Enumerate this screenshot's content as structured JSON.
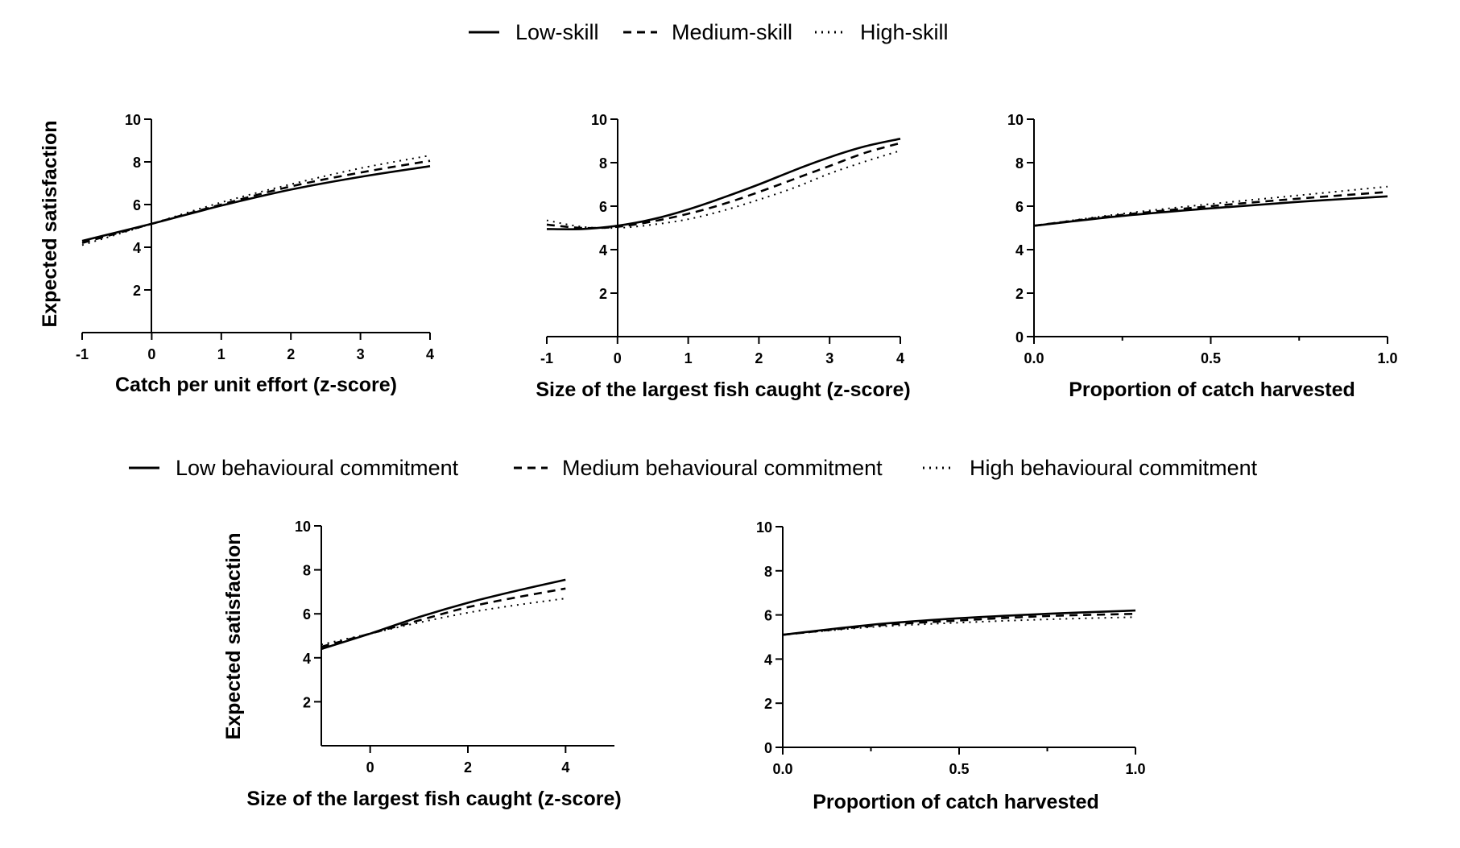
{
  "legends": [
    {
      "items": [
        {
          "label": "Low-skill",
          "style": "solid"
        },
        {
          "label": "Medium-skill",
          "style": "dashed"
        },
        {
          "label": "High-skill",
          "style": "dotted"
        }
      ]
    },
    {
      "items": [
        {
          "label": "Low behavioural commitment",
          "style": "solid"
        },
        {
          "label": "Medium behavioural commitment",
          "style": "dashed"
        },
        {
          "label": "High behavioural commitment",
          "style": "dotted"
        }
      ]
    }
  ],
  "chart_data": [
    {
      "type": "line",
      "group": "skill",
      "xlabel": "Catch per unit effort (z-score)",
      "ylabel": "Expected satisfaction",
      "xlim": [
        -1,
        4
      ],
      "ylim": [
        0,
        10
      ],
      "x_ticks": [
        -1,
        0,
        1,
        2,
        3,
        4
      ],
      "x_tick_labels": [
        "-1",
        "0",
        "1",
        "2",
        "3",
        "4"
      ],
      "y_ticks": [
        2,
        4,
        6,
        8,
        10
      ],
      "y_tick_labels": [
        "2",
        "4",
        "6",
        "8",
        "10"
      ],
      "x": [
        -1,
        0,
        1,
        2,
        3,
        4
      ],
      "series": [
        {
          "name": "Low-skill",
          "style": "solid",
          "values": [
            4.3,
            5.1,
            5.95,
            6.7,
            7.3,
            7.8
          ]
        },
        {
          "name": "Medium-skill",
          "style": "dashed",
          "values": [
            4.2,
            5.1,
            6.0,
            6.85,
            7.5,
            8.05
          ]
        },
        {
          "name": "High-skill",
          "style": "dotted",
          "values": [
            4.1,
            5.1,
            6.1,
            6.95,
            7.7,
            8.3
          ]
        }
      ]
    },
    {
      "type": "line",
      "group": "skill",
      "xlabel": "Size of the largest fish caught (z-score)",
      "ylabel": "",
      "xlim": [
        -1,
        4
      ],
      "ylim": [
        0,
        10
      ],
      "x_ticks": [
        -1,
        0,
        1,
        2,
        3,
        4
      ],
      "x_tick_labels": [
        "-1",
        "0",
        "1",
        "2",
        "3",
        "4"
      ],
      "y_ticks": [
        2,
        4,
        6,
        8,
        10
      ],
      "y_tick_labels": [
        "2",
        "4",
        "6",
        "8",
        "10"
      ],
      "x": [
        -1,
        -0.5,
        0,
        0.5,
        1,
        1.5,
        2,
        2.5,
        3,
        3.5,
        4
      ],
      "series": [
        {
          "name": "Low-skill",
          "style": "solid",
          "values": [
            4.95,
            4.95,
            5.1,
            5.4,
            5.85,
            6.4,
            7.0,
            7.65,
            8.25,
            8.75,
            9.1
          ]
        },
        {
          "name": "Medium-skill",
          "style": "dashed",
          "values": [
            5.15,
            5.0,
            5.05,
            5.3,
            5.65,
            6.1,
            6.65,
            7.25,
            7.85,
            8.45,
            8.9
          ]
        },
        {
          "name": "High-skill",
          "style": "dotted",
          "values": [
            5.35,
            5.05,
            5.0,
            5.15,
            5.4,
            5.8,
            6.3,
            6.85,
            7.5,
            8.05,
            8.55
          ]
        }
      ]
    },
    {
      "type": "line",
      "group": "skill",
      "xlabel": "Proportion of catch harvested",
      "ylabel": "",
      "xlim": [
        0,
        1
      ],
      "ylim": [
        0,
        10
      ],
      "x_ticks": [
        0,
        0.5,
        1
      ],
      "x_tick_labels": [
        "0.0",
        "0.5",
        "1.0"
      ],
      "y_ticks": [
        0,
        2,
        4,
        6,
        8,
        10
      ],
      "y_tick_labels": [
        "0",
        "2",
        "4",
        "6",
        "8",
        "10"
      ],
      "x": [
        0,
        0.25,
        0.5,
        0.75,
        1
      ],
      "series": [
        {
          "name": "Low-skill",
          "style": "solid",
          "values": [
            5.1,
            5.55,
            5.9,
            6.2,
            6.45
          ]
        },
        {
          "name": "Medium-skill",
          "style": "dashed",
          "values": [
            5.1,
            5.6,
            6.0,
            6.35,
            6.65
          ]
        },
        {
          "name": "High-skill",
          "style": "dotted",
          "values": [
            5.1,
            5.65,
            6.1,
            6.5,
            6.9
          ]
        }
      ]
    },
    {
      "type": "line",
      "group": "behavioural commitment",
      "xlabel": "Size of the largest fish caught (z-score)",
      "ylabel": "Expected satisfaction",
      "xlim": [
        -1,
        5
      ],
      "ylim": [
        0,
        10
      ],
      "x_ticks": [
        0,
        2,
        4
      ],
      "x_tick_labels": [
        "0",
        "2",
        "4"
      ],
      "y_ticks": [
        2,
        4,
        6,
        8,
        10
      ],
      "y_tick_labels": [
        "2",
        "4",
        "6",
        "8",
        "10"
      ],
      "x": [
        -1,
        0,
        1,
        2,
        3,
        4
      ],
      "series": [
        {
          "name": "Low behavioural commitment",
          "style": "solid",
          "values": [
            4.4,
            5.1,
            5.85,
            6.5,
            7.05,
            7.55
          ]
        },
        {
          "name": "Medium behavioural commitment",
          "style": "dashed",
          "values": [
            4.5,
            5.1,
            5.7,
            6.3,
            6.75,
            7.15
          ]
        },
        {
          "name": "High behavioural commitment",
          "style": "dotted",
          "values": [
            4.6,
            5.1,
            5.6,
            6.05,
            6.4,
            6.7
          ]
        }
      ]
    },
    {
      "type": "line",
      "group": "behavioural commitment",
      "xlabel": "Proportion of catch harvested",
      "ylabel": "",
      "xlim": [
        0,
        1
      ],
      "ylim": [
        0,
        10
      ],
      "x_ticks": [
        0,
        0.5,
        1
      ],
      "x_tick_labels": [
        "0.0",
        "0.5",
        "1.0"
      ],
      "y_ticks": [
        0,
        2,
        4,
        6,
        8,
        10
      ],
      "y_tick_labels": [
        "0",
        "2",
        "4",
        "6",
        "8",
        "10"
      ],
      "x": [
        0,
        0.25,
        0.5,
        0.75,
        1
      ],
      "series": [
        {
          "name": "Low behavioural commitment",
          "style": "solid",
          "values": [
            5.1,
            5.55,
            5.85,
            6.05,
            6.2
          ]
        },
        {
          "name": "Medium behavioural commitment",
          "style": "dashed",
          "values": [
            5.1,
            5.5,
            5.75,
            5.95,
            6.05
          ]
        },
        {
          "name": "High behavioural commitment",
          "style": "dotted",
          "values": [
            5.1,
            5.45,
            5.65,
            5.8,
            5.9
          ]
        }
      ]
    }
  ]
}
